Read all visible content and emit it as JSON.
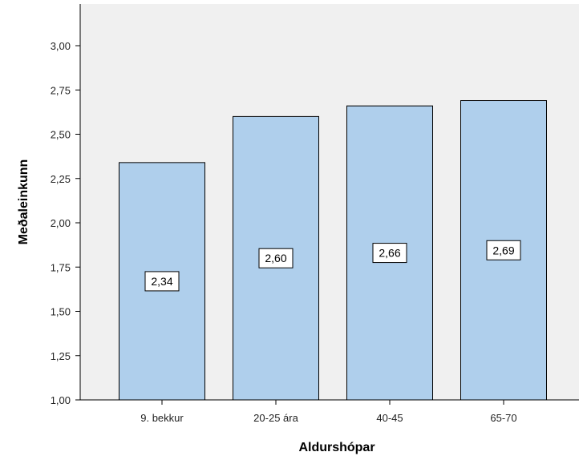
{
  "chart_data": {
    "type": "bar",
    "categories": [
      "9. bekkur",
      "20-25 ára",
      "40-45",
      "65-70"
    ],
    "values": [
      2.34,
      2.6,
      2.66,
      2.69
    ],
    "data_labels": [
      "2,34",
      "2,60",
      "2,66",
      "2,69"
    ],
    "xlabel": "Aldurshópar",
    "ylabel": "Meðaleinkunn",
    "ylim": [
      1.0,
      3.0
    ],
    "yticks": [
      1.0,
      1.25,
      1.5,
      1.75,
      2.0,
      2.25,
      2.5,
      2.75,
      3.0
    ],
    "ytick_labels": [
      "1,00",
      "1,25",
      "1,50",
      "1,75",
      "2,00",
      "2,25",
      "2,50",
      "2,75",
      "3,00"
    ],
    "grid": false,
    "legend": "none",
    "colors": {
      "bar_fill": "#afcfec",
      "bar_stroke": "#000000",
      "plot_background": "#f0f0f0",
      "page_background": "#ffffff"
    }
  }
}
